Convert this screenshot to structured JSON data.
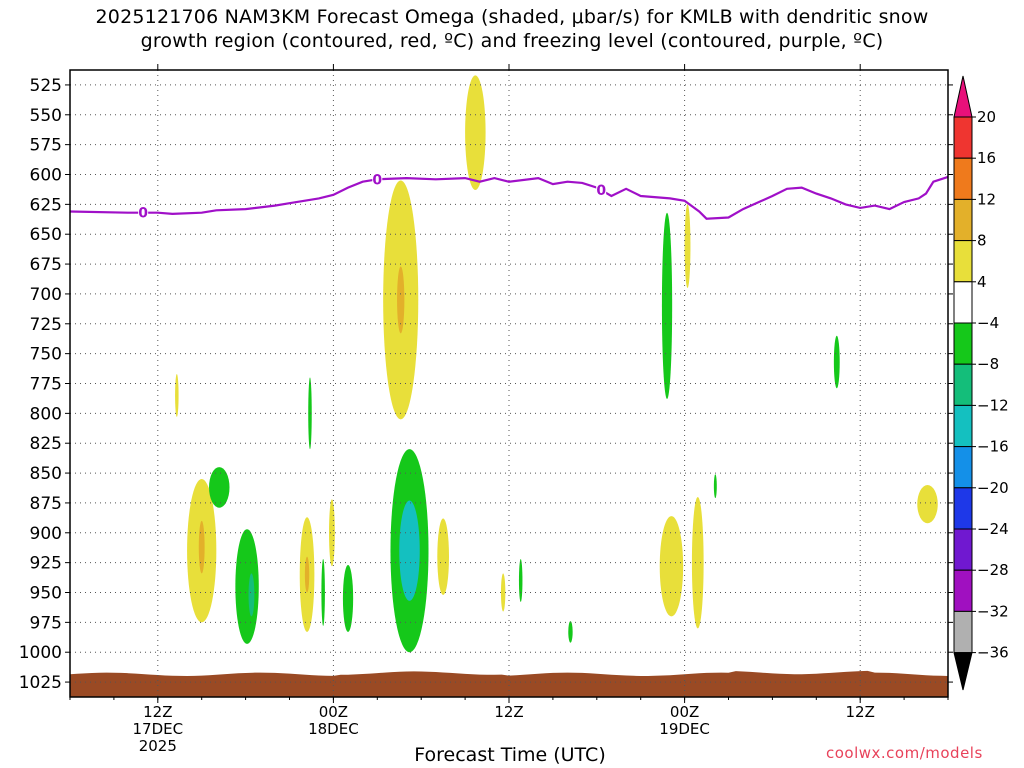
{
  "title": {
    "line1": "2025121706 NAM3KM Forecast Omega (shaded, μbar/s) for KMLB with dendritic snow",
    "line2": "growth region (contoured, red, ºC) and freezing level (contoured, purple, ºC)"
  },
  "credit": "coolwx.com/models",
  "chart_data": {
    "type": "heatmap",
    "xlabel": "Forecast Time (UTC)",
    "ylabel": "",
    "y_axis": {
      "scale": "pressure (hPa), inverted",
      "ticks": [
        "525",
        "550",
        "575",
        "600",
        "625",
        "650",
        "675",
        "700",
        "725",
        "750",
        "775",
        "800",
        "825",
        "850",
        "875",
        "900",
        "925",
        "950",
        "975",
        "1000",
        "1025"
      ]
    },
    "x_axis": {
      "range": [
        "2025-12-17T06Z",
        "2025-12-19T18Z"
      ],
      "ticks": [
        {
          "hour": 6,
          "line1": "12Z",
          "line2": "17DEC",
          "line3": "2025"
        },
        {
          "hour": 18,
          "line1": "00Z",
          "line2": "18DEC",
          "line3": ""
        },
        {
          "hour": 30,
          "line1": "12Z",
          "line2": "",
          "line3": ""
        },
        {
          "hour": 42,
          "line1": "00Z",
          "line2": "19DEC",
          "line3": ""
        },
        {
          "hour": 54,
          "line1": "12Z",
          "line2": "",
          "line3": ""
        }
      ]
    },
    "grid": true,
    "colorbar": {
      "labels": [
        "20",
        "16",
        "12",
        "8",
        "4",
        "−4",
        "−8",
        "−12",
        "−16",
        "−20",
        "−24",
        "−28",
        "−32",
        "−36"
      ],
      "colors": [
        "#e8107a",
        "#ef3530",
        "#ef7a1c",
        "#e3b02a",
        "#e8df3a",
        "#ffffff",
        "#15c81a",
        "#14be7a",
        "#14c0c0",
        "#1490e8",
        "#1e38e8",
        "#7018d0",
        "#a010c0",
        "#b0b0b0",
        "#000000"
      ]
    },
    "freezing_level": {
      "label": "0",
      "color": "#a010c8",
      "points": [
        [
          0,
          631
        ],
        [
          4,
          632
        ],
        [
          6,
          632
        ],
        [
          7,
          633
        ],
        [
          9,
          632
        ],
        [
          10,
          630
        ],
        [
          12,
          629
        ],
        [
          14,
          626
        ],
        [
          15,
          624
        ],
        [
          17,
          620
        ],
        [
          18,
          617
        ],
        [
          19,
          611
        ],
        [
          20,
          606
        ],
        [
          21,
          604
        ],
        [
          23,
          603
        ],
        [
          25,
          604
        ],
        [
          27,
          603
        ],
        [
          28,
          606
        ],
        [
          29,
          603
        ],
        [
          30,
          606
        ],
        [
          32,
          603
        ],
        [
          33,
          608
        ],
        [
          34,
          606
        ],
        [
          35,
          607
        ],
        [
          36,
          611
        ],
        [
          37,
          618
        ],
        [
          38,
          612
        ],
        [
          39,
          618
        ],
        [
          41,
          620
        ],
        [
          42,
          622
        ],
        [
          43,
          631
        ],
        [
          43.5,
          637
        ],
        [
          45,
          636
        ],
        [
          46,
          629
        ],
        [
          48,
          618
        ],
        [
          49,
          612
        ],
        [
          50,
          611
        ],
        [
          51,
          616
        ],
        [
          52,
          620
        ],
        [
          53,
          625
        ],
        [
          54,
          628
        ],
        [
          55,
          626
        ],
        [
          56,
          629
        ],
        [
          57,
          623
        ],
        [
          58,
          620
        ],
        [
          58.5,
          616
        ],
        [
          59,
          606
        ],
        [
          60,
          602
        ]
      ],
      "label_hours": [
        5,
        21,
        36.3
      ]
    },
    "omega_features": [
      {
        "name": "rise-upper-1",
        "t": 27.7,
        "p": 565,
        "dt": 0.7,
        "dp": 48,
        "value": 5
      },
      {
        "name": "rise-mid-1",
        "t": 22.6,
        "p": 705,
        "dt": 1.2,
        "dp": 100,
        "value": 6
      },
      {
        "name": "rise-mid-1-core",
        "t": 22.6,
        "p": 705,
        "dt": 0.25,
        "dp": 28,
        "value": 9
      },
      {
        "name": "rise-mid-2",
        "t": 42.2,
        "p": 660,
        "dt": 0.2,
        "dp": 35,
        "value": 5
      },
      {
        "name": "rise-lower-1",
        "t": 9.0,
        "p": 915,
        "dt": 1.0,
        "dp": 60,
        "value": 6
      },
      {
        "name": "rise-lower-1-core",
        "t": 9.0,
        "p": 912,
        "dt": 0.2,
        "dp": 22,
        "value": 9
      },
      {
        "name": "rise-lower-2",
        "t": 16.2,
        "p": 935,
        "dt": 0.5,
        "dp": 48,
        "value": 5
      },
      {
        "name": "rise-lower-2-core",
        "t": 16.2,
        "p": 935,
        "dt": 0.15,
        "dp": 15,
        "value": 9
      },
      {
        "name": "rise-lower-3",
        "t": 17.9,
        "p": 900,
        "dt": 0.2,
        "dp": 28,
        "value": 5
      },
      {
        "name": "rise-lower-4",
        "t": 25.5,
        "p": 920,
        "dt": 0.4,
        "dp": 32,
        "value": 5
      },
      {
        "name": "rise-lower-5",
        "t": 29.6,
        "p": 950,
        "dt": 0.15,
        "dp": 16,
        "value": 5
      },
      {
        "name": "rise-lower-6",
        "t": 41.1,
        "p": 928,
        "dt": 0.8,
        "dp": 42,
        "value": 5
      },
      {
        "name": "rise-lower-7",
        "t": 42.9,
        "p": 925,
        "dt": 0.4,
        "dp": 55,
        "value": 5
      },
      {
        "name": "rise-lower-8",
        "t": 58.6,
        "p": 876,
        "dt": 0.7,
        "dp": 16,
        "value": 5
      },
      {
        "name": "rise-small-1",
        "t": 7.3,
        "p": 785,
        "dt": 0.12,
        "dp": 18,
        "value": 5
      },
      {
        "name": "sink-1",
        "t": 10.2,
        "p": 862,
        "dt": 0.7,
        "dp": 17,
        "value": -6
      },
      {
        "name": "sink-2",
        "t": 12.1,
        "p": 945,
        "dt": 0.8,
        "dp": 48,
        "value": -6
      },
      {
        "name": "sink-2-core",
        "t": 12.4,
        "p": 952,
        "dt": 0.2,
        "dp": 18,
        "value": -10
      },
      {
        "name": "sink-3",
        "t": 16.4,
        "p": 800,
        "dt": 0.12,
        "dp": 30,
        "value": -6
      },
      {
        "name": "sink-4",
        "t": 17.3,
        "p": 950,
        "dt": 0.12,
        "dp": 28,
        "value": -6
      },
      {
        "name": "sink-5",
        "t": 19.0,
        "p": 955,
        "dt": 0.35,
        "dp": 28,
        "value": -6
      },
      {
        "name": "sink-6",
        "t": 23.2,
        "p": 915,
        "dt": 1.3,
        "dp": 85,
        "value": -7
      },
      {
        "name": "sink-6-core",
        "t": 23.2,
        "p": 915,
        "dt": 0.7,
        "dp": 42,
        "value": -13
      },
      {
        "name": "sink-7",
        "t": 30.8,
        "p": 940,
        "dt": 0.12,
        "dp": 18,
        "value": -6
      },
      {
        "name": "sink-8",
        "t": 34.2,
        "p": 983,
        "dt": 0.15,
        "dp": 9,
        "value": -6
      },
      {
        "name": "sink-9",
        "t": 40.8,
        "p": 710,
        "dt": 0.35,
        "dp": 78,
        "value": -6
      },
      {
        "name": "sink-10",
        "t": 44.1,
        "p": 861,
        "dt": 0.1,
        "dp": 10,
        "value": -6
      },
      {
        "name": "sink-11",
        "t": 52.4,
        "p": 757,
        "dt": 0.2,
        "dp": 22,
        "value": -6
      }
    ],
    "surface_band": {
      "color": "#9a4a24"
    }
  }
}
